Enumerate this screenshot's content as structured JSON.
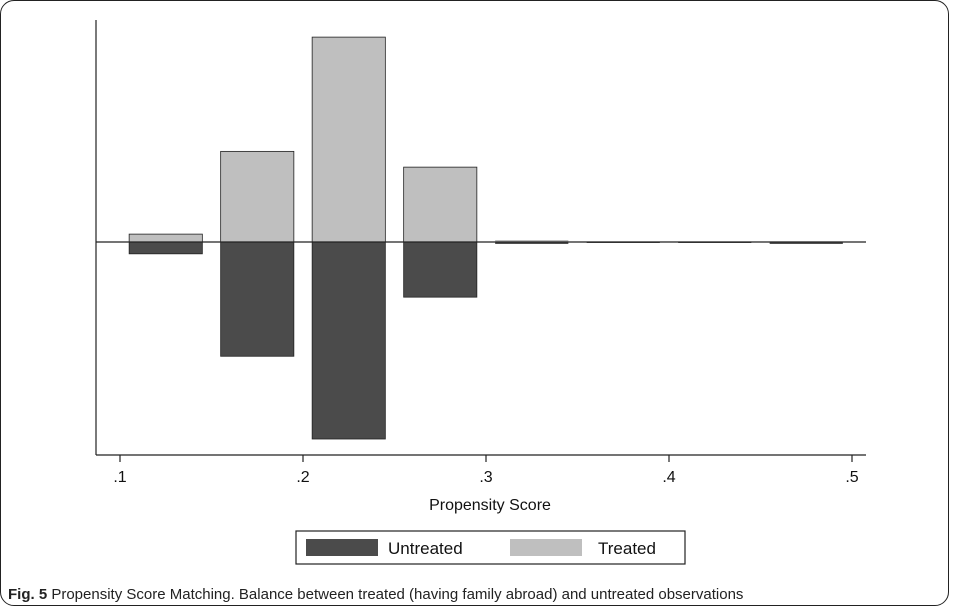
{
  "chart_data": {
    "type": "bar",
    "subtype": "mirrored-histogram",
    "xlabel": "Propensity Score",
    "xlim": [
      0.1,
      0.5
    ],
    "x_ticks": [
      {
        "value": 0.1,
        "label": ".1"
      },
      {
        "value": 0.2,
        "label": ".2"
      },
      {
        "value": 0.3,
        "label": ".3"
      },
      {
        "value": 0.4,
        "label": ".4"
      },
      {
        "value": 0.5,
        "label": ".5"
      }
    ],
    "bin_width": 0.04,
    "bin_starts": [
      0.105,
      0.155,
      0.205,
      0.255,
      0.305,
      0.355,
      0.405,
      0.455
    ],
    "ylim": [
      -1,
      1.04
    ],
    "y_ticks_shown": false,
    "series": [
      {
        "name": "Untreated",
        "direction": "down",
        "color": "#4b4b4b",
        "values": [
          0.06,
          0.58,
          1.0,
          0.28,
          0.01,
          0.003,
          0.003,
          0.01
        ]
      },
      {
        "name": "Treated",
        "direction": "up",
        "color": "#bfbfbf",
        "values": [
          0.04,
          0.46,
          1.04,
          0.38,
          0.01,
          0.003,
          0.003,
          0.003
        ]
      }
    ],
    "legend": {
      "position": "bottom",
      "entries": [
        "Untreated",
        "Treated"
      ]
    },
    "grid": false
  },
  "caption": {
    "label": "Fig. 5",
    "text": " Propensity Score Matching. Balance between treated (having family abroad) and untreated observations"
  }
}
